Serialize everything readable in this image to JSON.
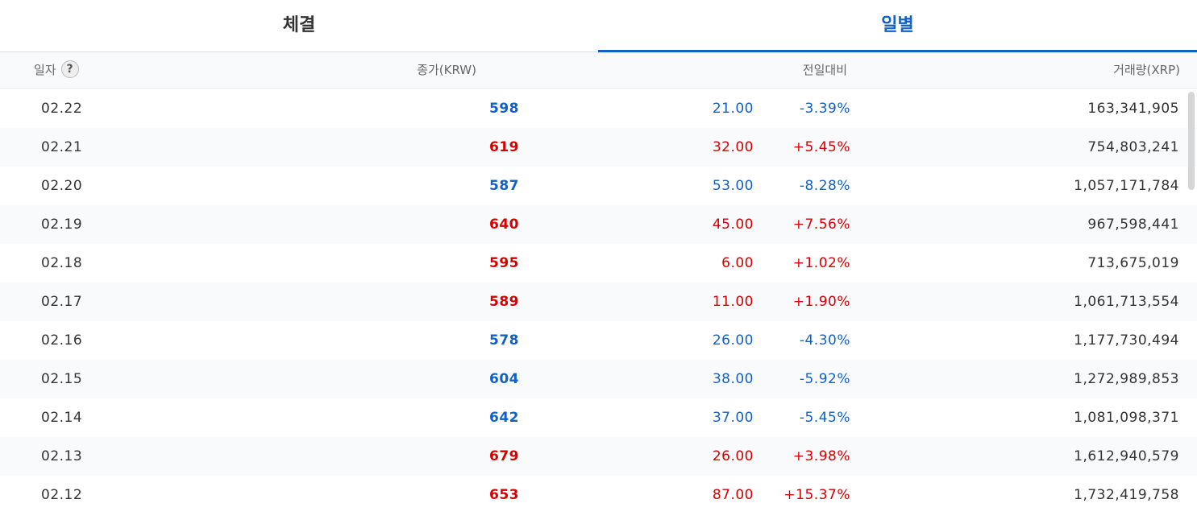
{
  "tabs": [
    {
      "label": "체결",
      "active": false
    },
    {
      "label": "일별",
      "active": true
    }
  ],
  "header": {
    "date": "일자",
    "close": "종가(KRW)",
    "change": "전일대비",
    "volume": "거래량(XRP)"
  },
  "colors": {
    "up": "#d60000",
    "down": "#1261c4",
    "active_tab": "#1261c4"
  },
  "rows": [
    {
      "date": "02.22",
      "close": "598",
      "diff": "21.00",
      "rate": "-3.39%",
      "volume": "163,341,905",
      "dir": "down"
    },
    {
      "date": "02.21",
      "close": "619",
      "diff": "32.00",
      "rate": "+5.45%",
      "volume": "754,803,241",
      "dir": "up"
    },
    {
      "date": "02.20",
      "close": "587",
      "diff": "53.00",
      "rate": "-8.28%",
      "volume": "1,057,171,784",
      "dir": "down"
    },
    {
      "date": "02.19",
      "close": "640",
      "diff": "45.00",
      "rate": "+7.56%",
      "volume": "967,598,441",
      "dir": "up"
    },
    {
      "date": "02.18",
      "close": "595",
      "diff": "6.00",
      "rate": "+1.02%",
      "volume": "713,675,019",
      "dir": "up"
    },
    {
      "date": "02.17",
      "close": "589",
      "diff": "11.00",
      "rate": "+1.90%",
      "volume": "1,061,713,554",
      "dir": "up"
    },
    {
      "date": "02.16",
      "close": "578",
      "diff": "26.00",
      "rate": "-4.30%",
      "volume": "1,177,730,494",
      "dir": "down"
    },
    {
      "date": "02.15",
      "close": "604",
      "diff": "38.00",
      "rate": "-5.92%",
      "volume": "1,272,989,853",
      "dir": "down"
    },
    {
      "date": "02.14",
      "close": "642",
      "diff": "37.00",
      "rate": "-5.45%",
      "volume": "1,081,098,371",
      "dir": "down"
    },
    {
      "date": "02.13",
      "close": "679",
      "diff": "26.00",
      "rate": "+3.98%",
      "volume": "1,612,940,579",
      "dir": "up"
    },
    {
      "date": "02.12",
      "close": "653",
      "diff": "87.00",
      "rate": "+15.37%",
      "volume": "1,732,419,758",
      "dir": "up"
    }
  ]
}
